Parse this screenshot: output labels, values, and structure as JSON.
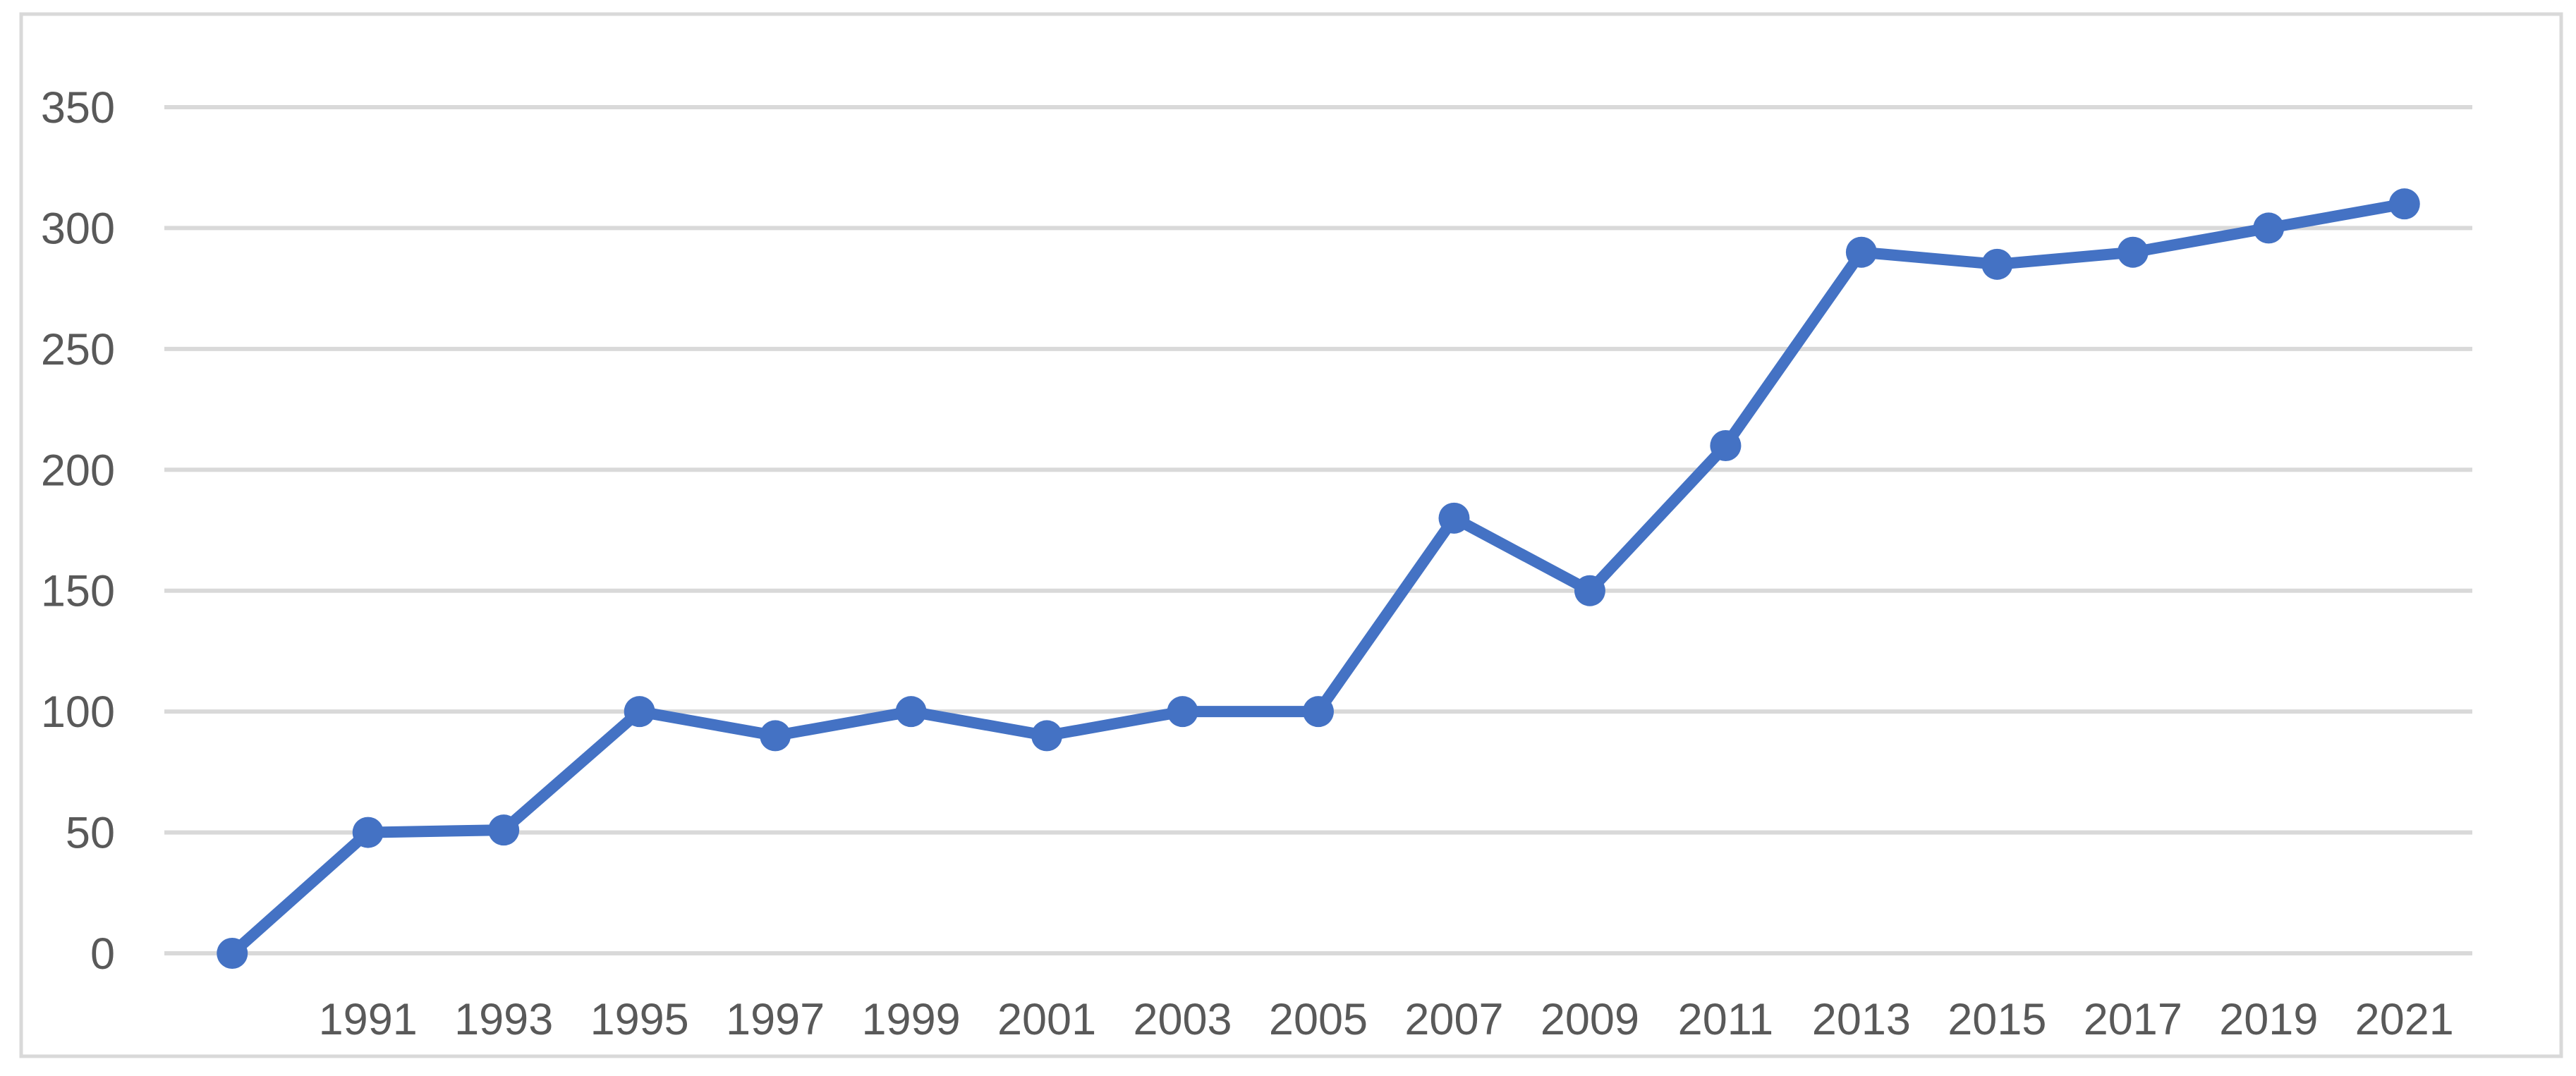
{
  "chart_data": {
    "type": "line",
    "categories": [
      "",
      "1991",
      "1993",
      "1995",
      "1997",
      "1999",
      "2001",
      "2003",
      "2005",
      "2007",
      "2009",
      "2011",
      "2013",
      "2015",
      "2017",
      "2019",
      "2021"
    ],
    "values": [
      0,
      50,
      51,
      100,
      90,
      100,
      90,
      100,
      100,
      180,
      150,
      210,
      290,
      285,
      290,
      300,
      310
    ],
    "title": "",
    "xlabel": "",
    "ylabel": "",
    "ylim": [
      0,
      350
    ],
    "y_ticks": [
      0,
      50,
      100,
      150,
      200,
      250,
      300,
      350
    ],
    "grid": true,
    "legend": false,
    "marker": "circle"
  },
  "style": {
    "series_color": "#4472C4",
    "gridline_color": "#D9D9D9",
    "border_color": "#D9D9D9",
    "tick_label_color": "#595959",
    "background": "#FFFFFF"
  }
}
